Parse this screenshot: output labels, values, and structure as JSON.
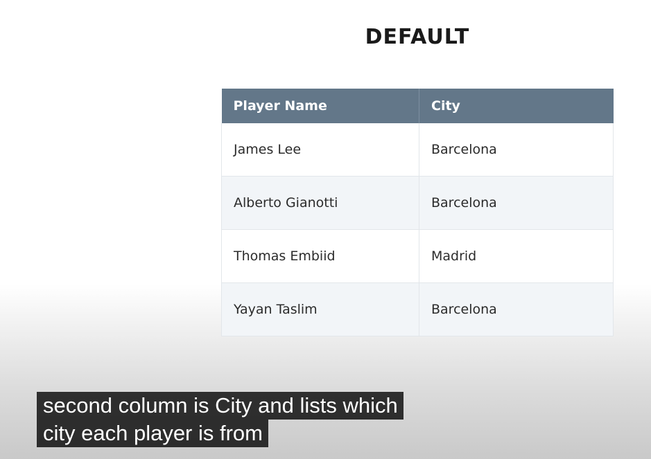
{
  "heading": "DEFAULT",
  "table": {
    "columns": [
      "Player Name",
      "City"
    ],
    "rows": [
      [
        "James Lee",
        "Barcelona"
      ],
      [
        "Alberto Gianotti",
        "Barcelona"
      ],
      [
        "Thomas Embiid",
        "Madrid"
      ],
      [
        "Yayan Taslim",
        "Barcelona"
      ]
    ]
  },
  "captions": [
    "second column is City and lists which",
    "city each player is from"
  ]
}
